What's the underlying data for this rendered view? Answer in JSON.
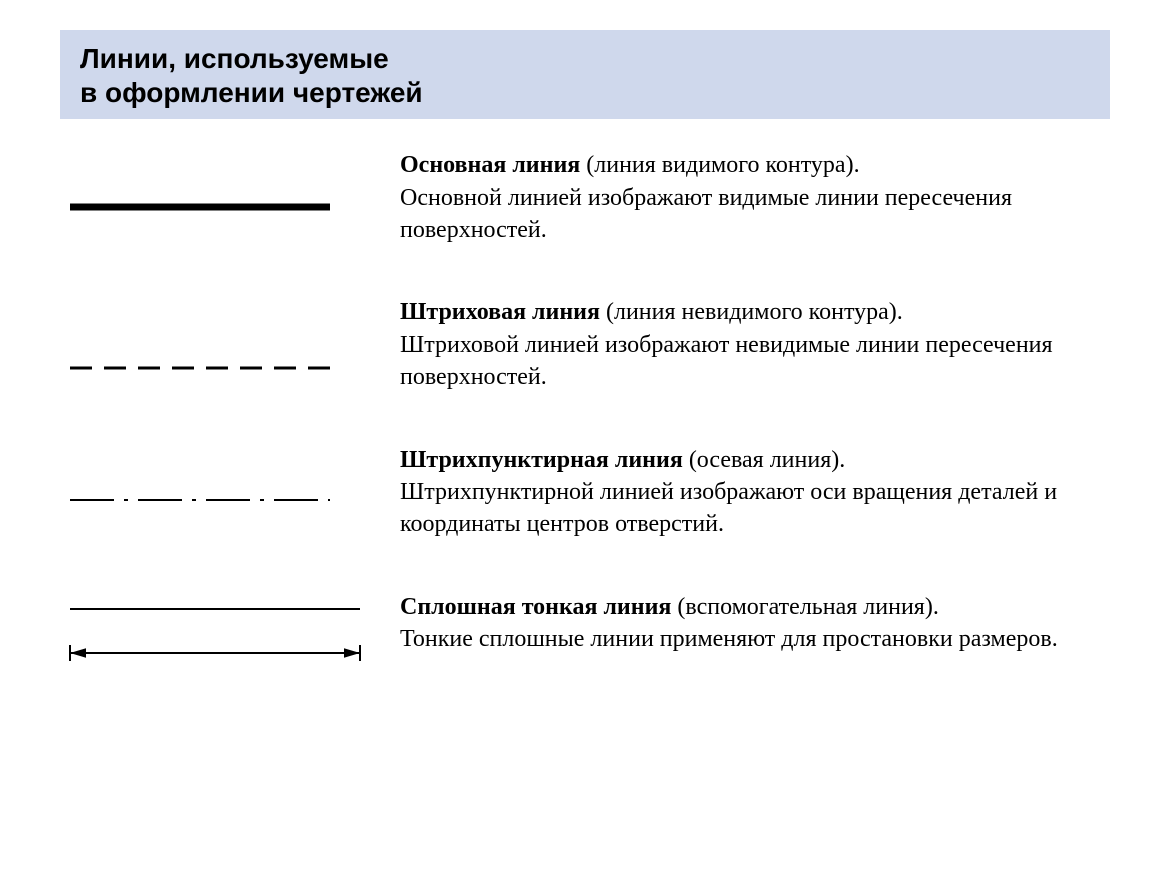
{
  "page": {
    "background_color": "#ffffff",
    "text_color": "#000000"
  },
  "header": {
    "line1": "Линии, используемые",
    "line2": "в оформлении чертежей",
    "background_color": "#cfd8ec",
    "font_size": 28,
    "font_weight": 900
  },
  "rows": [
    {
      "id": "main-line",
      "sample": {
        "type": "solid-thick",
        "stroke_width": 7,
        "stroke_color": "#000000",
        "length": 260
      },
      "bold": "Основная линия",
      "paren": " (линия видимого контура).",
      "rest": "Основной линией изображают видимые линии пересечения поверхностей.",
      "font_size": 24
    },
    {
      "id": "dashed-line",
      "sample": {
        "type": "dashed",
        "stroke_width": 3,
        "stroke_color": "#000000",
        "length": 260,
        "dash": "22 12"
      },
      "bold": "Штриховая линия",
      "paren": " (линия невидимого контура).",
      "rest": "Штриховой линией изображают невидимые линии пересечения поверхностей.",
      "font_size": 24
    },
    {
      "id": "dashdot-line",
      "sample": {
        "type": "dash-dot",
        "stroke_width": 2,
        "stroke_color": "#000000",
        "length": 260,
        "dash": "44 10 4 10"
      },
      "bold": "Штрихпунктирная линия",
      "paren": " (осевая линия).",
      "rest": "Штрихпунктирной линией изображают оси вращения деталей и координаты центров отверстий.",
      "font_size": 24
    },
    {
      "id": "thin-line",
      "sample": {
        "type": "thin-pair",
        "stroke_width": 2,
        "stroke_color": "#000000",
        "length": 290,
        "gap": 42,
        "arrow_size": 8
      },
      "bold": "Сплошная тонкая линия",
      "paren": " (вспомогательная линия).",
      "rest": "Тонкие сплошные линии применяют для простановки размеров.",
      "font_size": 24
    }
  ]
}
